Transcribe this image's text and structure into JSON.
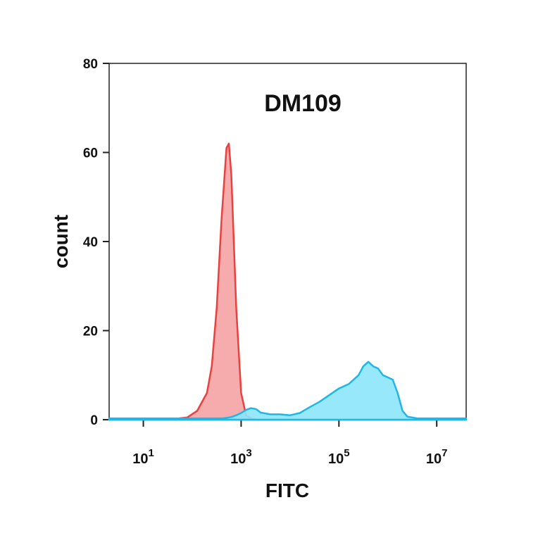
{
  "chart_data": {
    "type": "area",
    "title": "DM109",
    "xlabel": "FITC",
    "ylabel": "count",
    "xscale": "log",
    "x": [
      2,
      32,
      79,
      126,
      200,
      251,
      316,
      398,
      501,
      562,
      631,
      708,
      794,
      1000,
      1259,
      1585,
      1995,
      2512,
      3981,
      6310,
      10000,
      15849,
      25119,
      39811,
      63096,
      100000,
      158489,
      251189,
      316228,
      398107,
      501187,
      630957,
      794328,
      1000000,
      1258925,
      1584893,
      1995262,
      2511886,
      3981072,
      10000000,
      39810717
    ],
    "series": [
      {
        "color": "#e8413f",
        "fill": "#f5a3a3",
        "values": [
          0,
          0,
          0.5,
          2,
          6,
          12,
          25,
          45,
          61,
          62,
          55,
          40,
          25,
          6,
          1,
          0.3,
          0,
          0,
          0,
          0,
          0,
          0,
          0,
          0,
          0,
          0,
          0,
          0,
          0,
          0,
          0,
          0,
          0,
          0,
          0,
          0,
          0,
          0,
          0,
          0,
          0
        ]
      },
      {
        "color": "#1fb6ea",
        "fill": "#8ce6fa",
        "values": [
          0.3,
          0.3,
          0.3,
          0.3,
          0.3,
          0.3,
          0.3,
          0.3,
          0.4,
          0.5,
          0.6,
          0.8,
          1,
          1.5,
          2.2,
          2.6,
          2.4,
          1.6,
          1.2,
          1.2,
          1.0,
          1.5,
          2.8,
          4,
          5.5,
          7,
          8,
          10,
          12,
          13,
          12,
          11.5,
          10,
          9.5,
          9,
          6,
          2,
          0.7,
          0.3,
          0.3,
          0.3
        ]
      }
    ],
    "xlim": [
      2,
      40000000
    ],
    "xticks": [
      {
        "value": 10,
        "label": "10^1"
      },
      {
        "value": 1000,
        "label": "10^3"
      },
      {
        "value": 100000,
        "label": "10^5"
      },
      {
        "value": 10000000,
        "label": "10^7"
      }
    ],
    "ylim": [
      0,
      80
    ],
    "yticks": [
      0,
      20,
      40,
      60,
      80
    ]
  }
}
